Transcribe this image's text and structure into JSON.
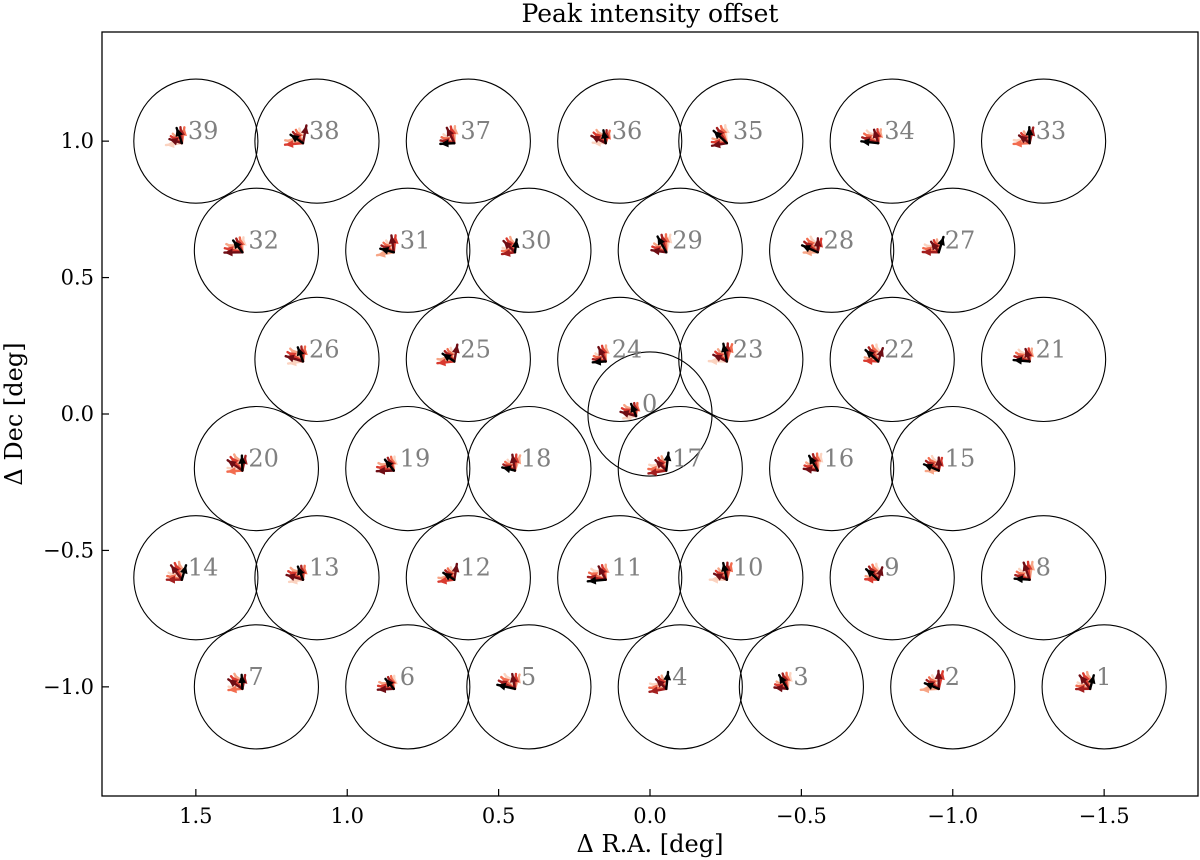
{
  "chart_data": {
    "type": "scatter",
    "title": "Peak intensity offset",
    "xlabel": "Δ R.A. [deg]",
    "ylabel": "Δ Dec [deg]",
    "xlim": [
      1.81,
      -1.81
    ],
    "ylim": [
      -1.4,
      1.4
    ],
    "xticks": [
      1.5,
      1.0,
      0.5,
      0.0,
      -0.5,
      -1.0,
      -1.5
    ],
    "xtick_labels": [
      "1.5",
      "1.0",
      "0.5",
      "0.0",
      "−0.5",
      "−1.0",
      "−1.5"
    ],
    "yticks": [
      1.0,
      0.5,
      0.0,
      -0.5,
      -1.0
    ],
    "ytick_labels": [
      "1.0",
      "0.5",
      "0.0",
      "−0.5",
      "−1.0"
    ],
    "beam_radius_deg": 0.205,
    "grid": false,
    "offset_arrow_colors": [
      "#fbd3c0",
      "#f7a586",
      "#f26c4f",
      "#d93a2f",
      "#a31f1f",
      "#6e0d14",
      "#000000"
    ],
    "beams": [
      {
        "label": "0",
        "ra": 0.0,
        "dec": 0.0
      },
      {
        "label": "1",
        "ra": -1.5,
        "dec": -1.0
      },
      {
        "label": "2",
        "ra": -1.0,
        "dec": -1.0
      },
      {
        "label": "3",
        "ra": -0.5,
        "dec": -1.0
      },
      {
        "label": "4",
        "ra": -0.1,
        "dec": -1.0
      },
      {
        "label": "5",
        "ra": 0.4,
        "dec": -1.0
      },
      {
        "label": "6",
        "ra": 0.8,
        "dec": -1.0
      },
      {
        "label": "7",
        "ra": 1.3,
        "dec": -1.0
      },
      {
        "label": "8",
        "ra": -1.3,
        "dec": -0.6
      },
      {
        "label": "9",
        "ra": -0.8,
        "dec": -0.6
      },
      {
        "label": "10",
        "ra": -0.3,
        "dec": -0.6
      },
      {
        "label": "11",
        "ra": 0.1,
        "dec": -0.6
      },
      {
        "label": "12",
        "ra": 0.6,
        "dec": -0.6
      },
      {
        "label": "13",
        "ra": 1.1,
        "dec": -0.6
      },
      {
        "label": "14",
        "ra": 1.5,
        "dec": -0.6
      },
      {
        "label": "15",
        "ra": -1.0,
        "dec": -0.2
      },
      {
        "label": "16",
        "ra": -0.6,
        "dec": -0.2
      },
      {
        "label": "17",
        "ra": -0.1,
        "dec": -0.2
      },
      {
        "label": "18",
        "ra": 0.4,
        "dec": -0.2
      },
      {
        "label": "19",
        "ra": 0.8,
        "dec": -0.2
      },
      {
        "label": "20",
        "ra": 1.3,
        "dec": -0.2
      },
      {
        "label": "21",
        "ra": -1.3,
        "dec": 0.2
      },
      {
        "label": "22",
        "ra": -0.8,
        "dec": 0.2
      },
      {
        "label": "23",
        "ra": -0.3,
        "dec": 0.2
      },
      {
        "label": "24",
        "ra": 0.1,
        "dec": 0.2
      },
      {
        "label": "25",
        "ra": 0.6,
        "dec": 0.2
      },
      {
        "label": "26",
        "ra": 1.1,
        "dec": 0.2
      },
      {
        "label": "27",
        "ra": -1.0,
        "dec": 0.6
      },
      {
        "label": "28",
        "ra": -0.6,
        "dec": 0.6
      },
      {
        "label": "29",
        "ra": -0.1,
        "dec": 0.6
      },
      {
        "label": "30",
        "ra": 0.4,
        "dec": 0.6
      },
      {
        "label": "31",
        "ra": 0.8,
        "dec": 0.6
      },
      {
        "label": "32",
        "ra": 1.3,
        "dec": 0.6
      },
      {
        "label": "33",
        "ra": -1.3,
        "dec": 1.0
      },
      {
        "label": "34",
        "ra": -0.8,
        "dec": 1.0
      },
      {
        "label": "35",
        "ra": -0.3,
        "dec": 1.0
      },
      {
        "label": "36",
        "ra": 0.1,
        "dec": 1.0
      },
      {
        "label": "37",
        "ra": 0.6,
        "dec": 1.0
      },
      {
        "label": "38",
        "ra": 1.1,
        "dec": 1.0
      },
      {
        "label": "39",
        "ra": 1.5,
        "dec": 1.0
      }
    ]
  }
}
